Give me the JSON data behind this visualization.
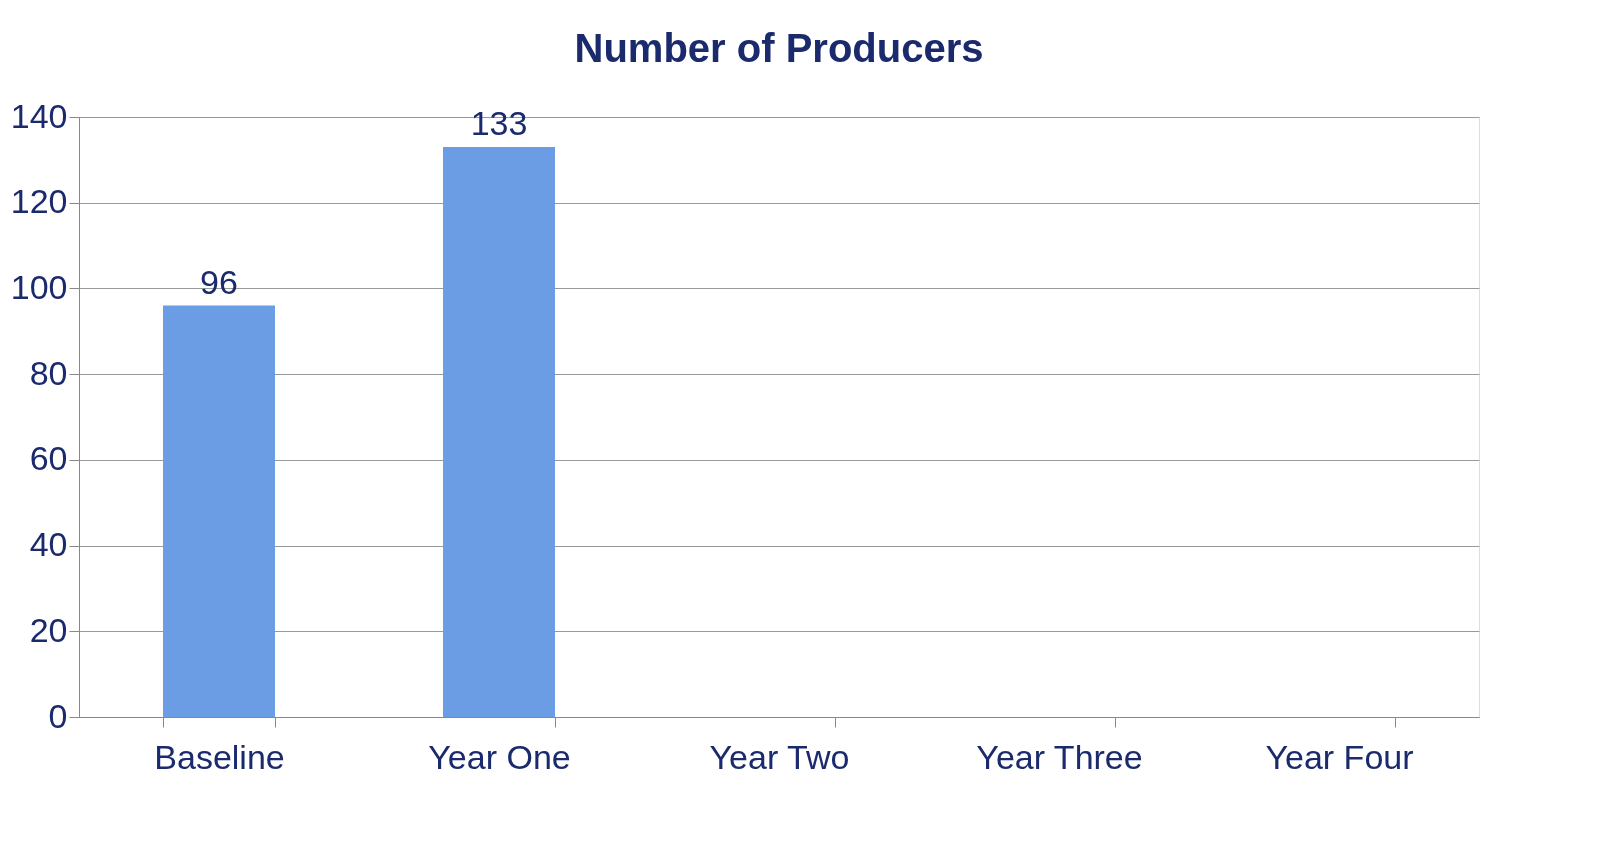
{
  "chart_data": {
    "type": "bar",
    "title": "Number of Producers",
    "categories": [
      "Baseline",
      "Year One",
      "Year Two",
      "Year Three",
      "Year Four"
    ],
    "values": [
      96,
      133,
      null,
      null,
      null
    ],
    "color": "#6a9de3",
    "ylim": [
      0,
      140
    ],
    "yticks": [
      0,
      20,
      40,
      60,
      80,
      100,
      120,
      140
    ],
    "grid": "y",
    "data_labels": true
  }
}
